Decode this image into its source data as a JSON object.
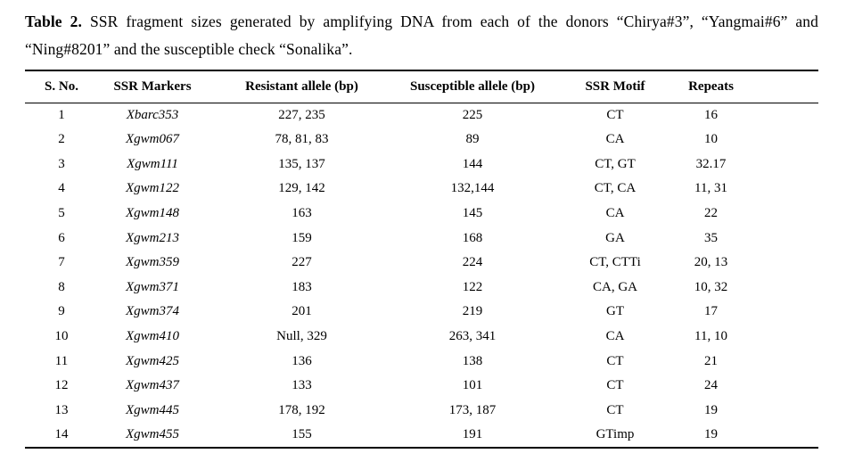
{
  "caption": {
    "label": "Table 2.",
    "text": "SSR fragment sizes generated by amplifying DNA from each of the donors “Chirya#3”, “Yangmai#6” and “Ning#8201” and the susceptible check “Sonalika”."
  },
  "table": {
    "columns": [
      "S. No.",
      "SSR Markers",
      "Resistant allele (bp)",
      "Susceptible allele (bp)",
      "SSR Motif",
      "Repeats"
    ],
    "rows": [
      [
        "1",
        "Xbarc353",
        "227, 235",
        "225",
        "CT",
        "16"
      ],
      [
        "2",
        "Xgwm067",
        "78, 81, 83",
        "89",
        "CA",
        "10"
      ],
      [
        "3",
        "Xgwm111",
        "135, 137",
        "144",
        "CT, GT",
        "32.17"
      ],
      [
        "4",
        "Xgwm122",
        "129, 142",
        "132,144",
        "CT, CA",
        "11, 31"
      ],
      [
        "5",
        "Xgwm148",
        "163",
        "145",
        "CA",
        "22"
      ],
      [
        "6",
        "Xgwm213",
        "159",
        "168",
        "GA",
        "35"
      ],
      [
        "7",
        "Xgwm359",
        "227",
        "224",
        "CT, CTTi",
        "20, 13"
      ],
      [
        "8",
        "Xgwm371",
        "183",
        "122",
        "CA, GA",
        "10, 32"
      ],
      [
        "9",
        "Xgwm374",
        "201",
        "219",
        "GT",
        "17"
      ],
      [
        "10",
        "Xgwm410",
        "Null, 329",
        "263, 341",
        "CA",
        "11, 10"
      ],
      [
        "11",
        "Xgwm425",
        "136",
        "138",
        "CT",
        "21"
      ],
      [
        "12",
        "Xgwm437",
        "133",
        "101",
        "CT",
        "24"
      ],
      [
        "13",
        "Xgwm445",
        "178, 192",
        "173, 187",
        "CT",
        "19"
      ],
      [
        "14",
        "Xgwm455",
        "155",
        "191",
        "GTimp",
        "19"
      ]
    ]
  },
  "colors": {
    "text": "#000000",
    "background": "#ffffff",
    "rule": "#000000"
  }
}
